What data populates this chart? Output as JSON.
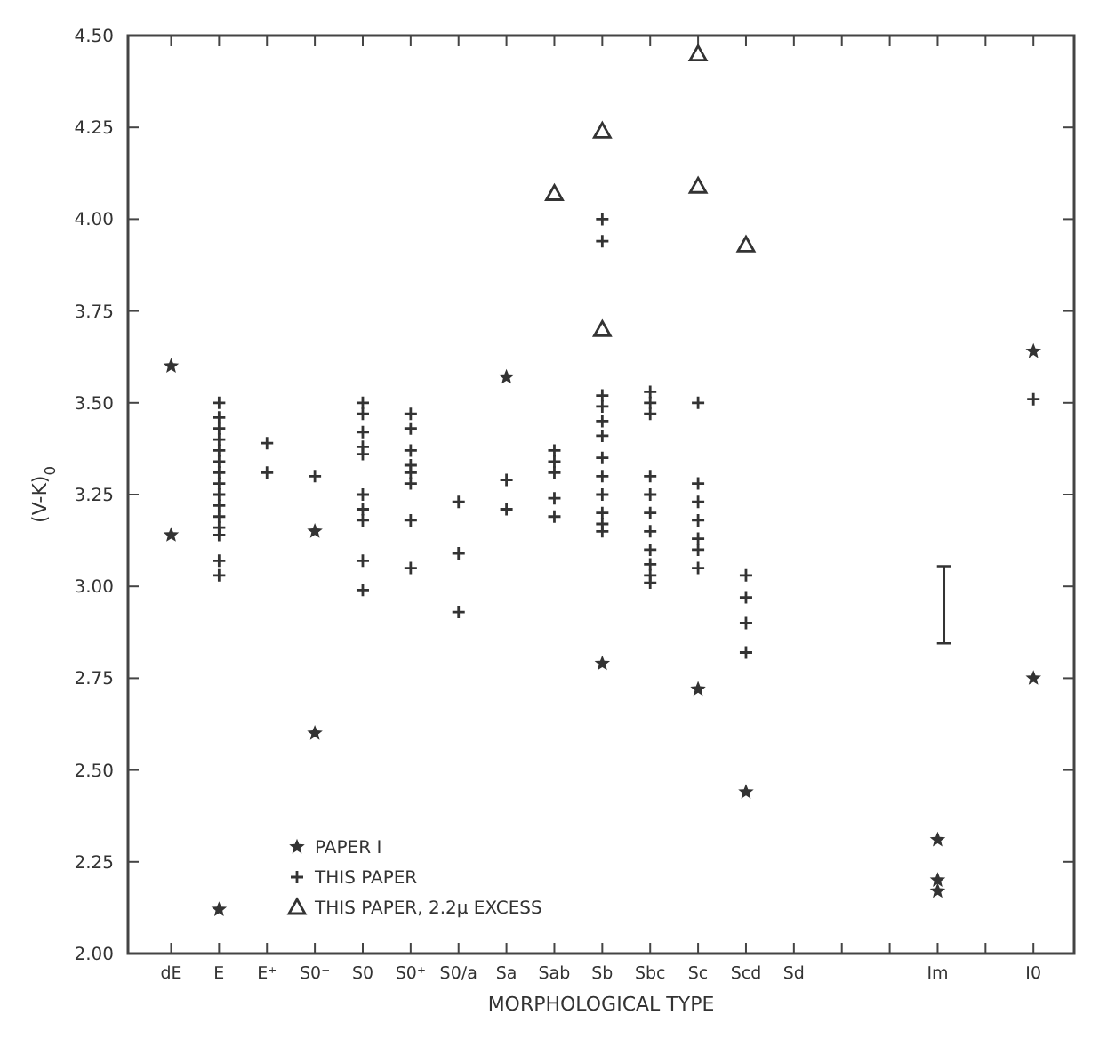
{
  "chart_data": {
    "type": "scatter",
    "xlabel": "MORPHOLOGICAL TYPE",
    "ylabel": "(V-K)$_{0}$",
    "categories": [
      "dE",
      "E",
      "E⁺",
      "S0⁻",
      "S0",
      "S0⁺",
      "S0/a",
      "Sa",
      "Sab",
      "Sb",
      "Sbc",
      "Sc",
      "Scd",
      "Sd",
      null,
      null,
      "Im",
      null,
      "I0"
    ],
    "ylim": [
      2,
      4.5
    ],
    "yticks": [
      {
        "value": 2,
        "label": "2.00"
      },
      {
        "value": 2.25,
        "label": "2.25"
      },
      {
        "value": 2.5,
        "label": "2.50"
      },
      {
        "value": 2.75,
        "label": "2.75"
      },
      {
        "value": 3,
        "label": "3.00"
      },
      {
        "value": 3.25,
        "label": "3.25"
      },
      {
        "value": 3.5,
        "label": "3.50"
      },
      {
        "value": 3.75,
        "label": "3.75"
      },
      {
        "value": 4,
        "label": "4.00"
      },
      {
        "value": 4.25,
        "label": "4.25"
      },
      {
        "value": 4.5,
        "label": "4.50"
      }
    ],
    "grid": false,
    "legend": "bottom left",
    "series": [
      {
        "name": "PAPER I",
        "color": "#333333",
        "marker": "star",
        "x": [
          "dE",
          "dE",
          "E",
          "S0⁻",
          "S0⁻",
          "Sa",
          "Sb",
          "Sc",
          "Scd",
          "Im",
          "Im",
          "Im",
          "I0",
          "I0"
        ],
        "values": [
          3.6,
          3.14,
          2.12,
          3.15,
          2.6,
          3.57,
          2.79,
          2.72,
          2.44,
          2.31,
          2.2,
          2.17,
          3.64,
          2.75
        ]
      },
      {
        "name": "THIS PAPER",
        "color": "#333333",
        "marker": "cross",
        "x": [
          "E",
          "E",
          "E",
          "E",
          "E",
          "E",
          "E",
          "E",
          "E",
          "E",
          "E",
          "E",
          "E",
          "E",
          "E",
          "E⁺",
          "E⁺",
          "S0⁻",
          "S0",
          "S0",
          "S0",
          "S0",
          "S0",
          "S0",
          "S0",
          "S0",
          "S0",
          "S0",
          "S0⁺",
          "S0⁺",
          "S0⁺",
          "S0⁺",
          "S0⁺",
          "S0⁺",
          "S0⁺",
          "S0⁺",
          "S0/a",
          "S0/a",
          "S0/a",
          "Sa",
          "Sa",
          "Sab",
          "Sab",
          "Sab",
          "Sab",
          "Sab",
          "Sb",
          "Sb",
          "Sb",
          "Sb",
          "Sb",
          "Sb",
          "Sb",
          "Sb",
          "Sb",
          "Sb",
          "Sb",
          "Sb",
          "Sbc",
          "Sbc",
          "Sbc",
          "Sbc",
          "Sbc",
          "Sbc",
          "Sbc",
          "Sbc",
          "Sbc",
          "Sbc",
          "Sbc",
          "Sc",
          "Sc",
          "Sc",
          "Sc",
          "Sc",
          "Sc",
          "Sc",
          "Scd",
          "Scd",
          "Scd",
          "Scd",
          "I0"
        ],
        "values": [
          3.5,
          3.46,
          3.43,
          3.4,
          3.37,
          3.34,
          3.31,
          3.28,
          3.25,
          3.22,
          3.19,
          3.16,
          3.14,
          3.07,
          3.03,
          3.39,
          3.31,
          3.3,
          3.5,
          3.47,
          3.42,
          3.38,
          3.36,
          3.25,
          3.21,
          3.18,
          3.07,
          2.99,
          3.47,
          3.43,
          3.37,
          3.33,
          3.31,
          3.28,
          3.18,
          3.05,
          3.23,
          3.09,
          2.93,
          3.29,
          3.21,
          3.37,
          3.34,
          3.31,
          3.24,
          3.19,
          4,
          3.94,
          3.52,
          3.49,
          3.45,
          3.41,
          3.35,
          3.3,
          3.25,
          3.2,
          3.17,
          3.15,
          3.53,
          3.5,
          3.47,
          3.3,
          3.25,
          3.2,
          3.15,
          3.1,
          3.06,
          3.03,
          3.01,
          3.5,
          3.28,
          3.23,
          3.18,
          3.13,
          3.1,
          3.05,
          3.03,
          2.97,
          2.9,
          2.82,
          3.51
        ]
      },
      {
        "name": "THIS PAPER, 2.2μ EXCESS",
        "color": "#333333",
        "marker": "triangle",
        "x": [
          "Sab",
          "Sb",
          "Sb",
          "Sc",
          "Sc",
          "Scd"
        ],
        "values": [
          4.07,
          4.24,
          3.7,
          4.45,
          4.09,
          3.93
        ]
      }
    ]
  }
}
